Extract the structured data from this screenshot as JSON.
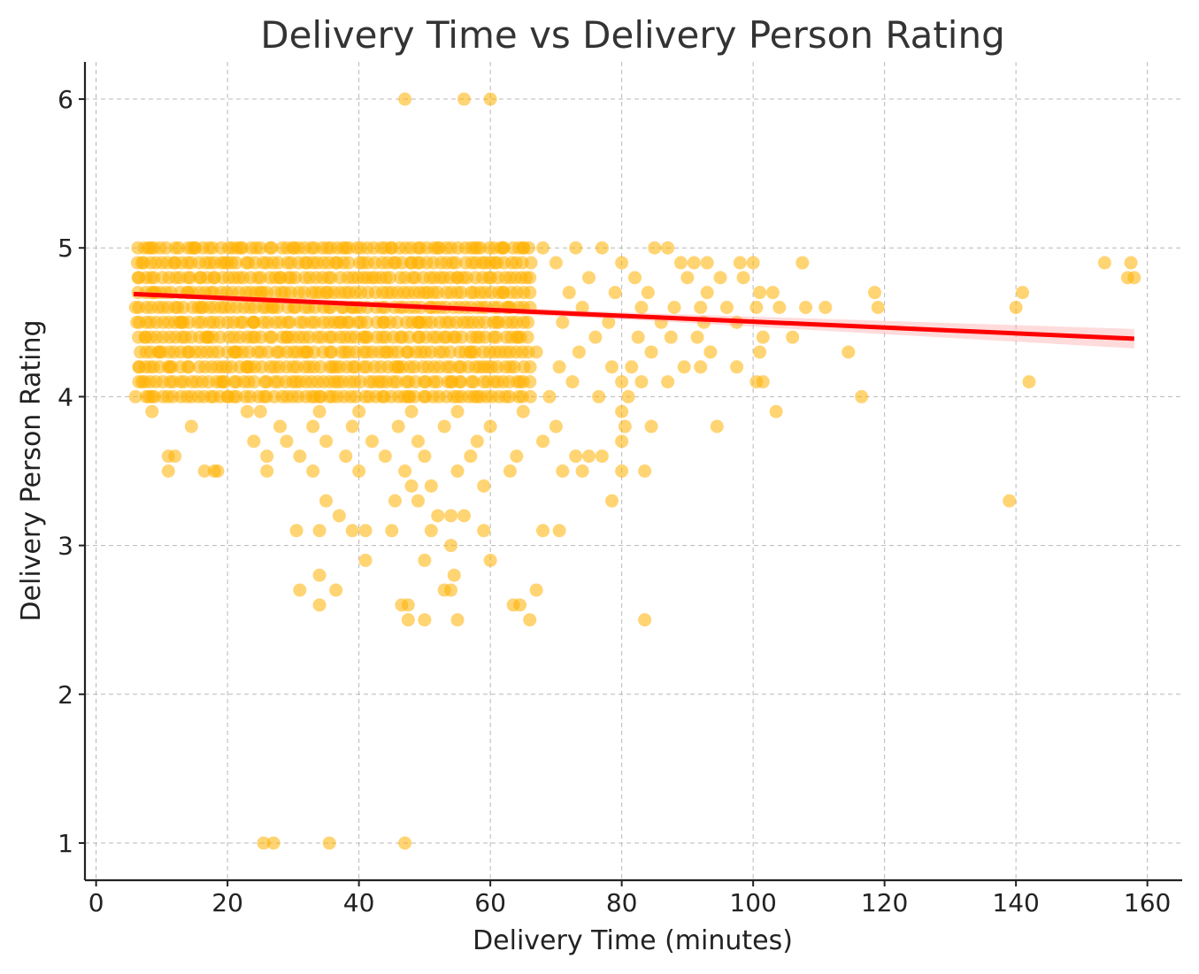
{
  "chart_data": {
    "type": "scatter",
    "title": "Delivery Time vs Delivery Person Rating",
    "xlabel": "Delivery Time (minutes)",
    "ylabel": "Delivery Person Rating",
    "xlim": [
      -1.7,
      165.3
    ],
    "ylim": [
      0.75,
      6.25
    ],
    "xticks": [
      0,
      20,
      40,
      60,
      80,
      100,
      120,
      140,
      160
    ],
    "yticks": [
      1,
      2,
      3,
      4,
      5,
      6
    ],
    "grid": true,
    "colors": {
      "points": "#FFB000",
      "trend": "#FF0000",
      "band": "#FF9999"
    },
    "series": [
      {
        "points": [
          [
            47,
            6.0
          ],
          [
            56,
            6.0
          ],
          [
            60,
            6.0
          ],
          [
            25.5,
            1.0
          ],
          [
            27,
            1.0
          ],
          [
            35.5,
            1.0
          ],
          [
            47,
            1.0
          ],
          [
            8,
            5.0
          ],
          [
            15,
            5.0
          ],
          [
            22,
            5.0
          ],
          [
            30,
            5.0
          ],
          [
            38,
            5.0
          ],
          [
            45,
            5.0
          ],
          [
            52,
            5.0
          ],
          [
            58,
            5.0
          ],
          [
            62,
            5.0
          ],
          [
            65,
            5.0
          ],
          [
            68,
            5.0
          ],
          [
            73,
            5.0
          ],
          [
            77,
            5.0
          ],
          [
            85,
            5.0
          ],
          [
            87,
            5.0
          ],
          [
            7,
            4.9
          ],
          [
            12,
            4.9
          ],
          [
            20,
            4.9
          ],
          [
            33,
            4.9
          ],
          [
            48,
            4.9
          ],
          [
            60,
            4.9
          ],
          [
            70,
            4.9
          ],
          [
            80,
            4.9
          ],
          [
            89,
            4.9
          ],
          [
            91,
            4.9
          ],
          [
            93,
            4.9
          ],
          [
            98,
            4.9
          ],
          [
            100,
            4.9
          ],
          [
            107.5,
            4.9
          ],
          [
            153.5,
            4.9
          ],
          [
            157.5,
            4.9
          ],
          [
            6.5,
            4.8
          ],
          [
            18,
            4.8
          ],
          [
            28,
            4.8
          ],
          [
            42,
            4.8
          ],
          [
            55,
            4.8
          ],
          [
            66,
            4.8
          ],
          [
            75,
            4.8
          ],
          [
            82,
            4.8
          ],
          [
            90,
            4.8
          ],
          [
            95,
            4.8
          ],
          [
            98.5,
            4.8
          ],
          [
            157,
            4.8
          ],
          [
            158,
            4.8
          ],
          [
            9,
            4.7
          ],
          [
            14,
            4.7
          ],
          [
            25,
            4.7
          ],
          [
            35,
            4.7
          ],
          [
            50,
            4.7
          ],
          [
            62,
            4.7
          ],
          [
            72,
            4.7
          ],
          [
            79,
            4.7
          ],
          [
            84,
            4.7
          ],
          [
            93,
            4.7
          ],
          [
            101,
            4.7
          ],
          [
            103,
            4.7
          ],
          [
            118.5,
            4.7
          ],
          [
            141,
            4.7
          ],
          [
            6,
            4.6
          ],
          [
            16,
            4.6
          ],
          [
            27,
            4.6
          ],
          [
            39,
            4.6
          ],
          [
            51,
            4.6
          ],
          [
            63,
            4.6
          ],
          [
            74,
            4.6
          ],
          [
            83,
            4.6
          ],
          [
            88,
            4.6
          ],
          [
            92,
            4.6
          ],
          [
            96,
            4.6
          ],
          [
            100.5,
            4.6
          ],
          [
            104,
            4.6
          ],
          [
            108,
            4.6
          ],
          [
            111,
            4.6
          ],
          [
            119,
            4.6
          ],
          [
            140,
            4.6
          ],
          [
            6.2,
            4.5
          ],
          [
            13,
            4.5
          ],
          [
            24,
            4.5
          ],
          [
            37,
            4.5
          ],
          [
            49,
            4.5
          ],
          [
            61,
            4.5
          ],
          [
            71,
            4.5
          ],
          [
            78,
            4.5
          ],
          [
            86,
            4.5
          ],
          [
            92.5,
            4.5
          ],
          [
            97.5,
            4.5
          ],
          [
            7.5,
            4.4
          ],
          [
            17,
            4.4
          ],
          [
            29,
            4.4
          ],
          [
            41,
            4.4
          ],
          [
            53,
            4.4
          ],
          [
            64,
            4.4
          ],
          [
            76,
            4.4
          ],
          [
            82.5,
            4.4
          ],
          [
            87.5,
            4.4
          ],
          [
            91.5,
            4.4
          ],
          [
            101.5,
            4.4
          ],
          [
            106,
            4.4
          ],
          [
            10,
            4.3
          ],
          [
            21,
            4.3
          ],
          [
            32,
            4.3
          ],
          [
            44,
            4.3
          ],
          [
            57,
            4.3
          ],
          [
            67,
            4.3
          ],
          [
            73.5,
            4.3
          ],
          [
            84.5,
            4.3
          ],
          [
            93.5,
            4.3
          ],
          [
            101,
            4.3
          ],
          [
            114.5,
            4.3
          ],
          [
            6.5,
            4.2
          ],
          [
            11,
            4.2
          ],
          [
            23,
            4.2
          ],
          [
            36,
            4.2
          ],
          [
            46,
            4.2
          ],
          [
            59,
            4.2
          ],
          [
            70.5,
            4.2
          ],
          [
            78.5,
            4.2
          ],
          [
            81.5,
            4.2
          ],
          [
            89.5,
            4.2
          ],
          [
            92,
            4.2
          ],
          [
            97.5,
            4.2
          ],
          [
            7,
            4.1
          ],
          [
            19,
            4.1
          ],
          [
            31,
            4.1
          ],
          [
            43,
            4.1
          ],
          [
            54,
            4.1
          ],
          [
            65,
            4.1
          ],
          [
            72.5,
            4.1
          ],
          [
            80,
            4.1
          ],
          [
            83,
            4.1
          ],
          [
            87,
            4.1
          ],
          [
            100.5,
            4.1
          ],
          [
            101.5,
            4.1
          ],
          [
            142,
            4.1
          ],
          [
            8.5,
            4.0
          ],
          [
            20,
            4.0
          ],
          [
            34,
            4.0
          ],
          [
            47.5,
            4.0
          ],
          [
            58,
            4.0
          ],
          [
            69,
            4.0
          ],
          [
            76.5,
            4.0
          ],
          [
            81,
            4.0
          ],
          [
            116.5,
            4.0
          ],
          [
            8.5,
            3.9
          ],
          [
            23,
            3.9
          ],
          [
            25,
            3.9
          ],
          [
            34,
            3.9
          ],
          [
            40,
            3.9
          ],
          [
            48,
            3.9
          ],
          [
            55,
            3.9
          ],
          [
            65,
            3.9
          ],
          [
            80,
            3.9
          ],
          [
            103.5,
            3.9
          ],
          [
            14.5,
            3.8
          ],
          [
            28,
            3.8
          ],
          [
            33,
            3.8
          ],
          [
            39,
            3.8
          ],
          [
            46,
            3.8
          ],
          [
            53,
            3.8
          ],
          [
            60,
            3.8
          ],
          [
            70,
            3.8
          ],
          [
            80.5,
            3.8
          ],
          [
            84.5,
            3.8
          ],
          [
            94.5,
            3.8
          ],
          [
            24,
            3.7
          ],
          [
            29,
            3.7
          ],
          [
            35,
            3.7
          ],
          [
            42,
            3.7
          ],
          [
            49,
            3.7
          ],
          [
            58,
            3.7
          ],
          [
            68,
            3.7
          ],
          [
            80,
            3.7
          ],
          [
            11,
            3.6
          ],
          [
            12,
            3.6
          ],
          [
            26,
            3.6
          ],
          [
            31,
            3.6
          ],
          [
            38,
            3.6
          ],
          [
            44,
            3.6
          ],
          [
            50,
            3.6
          ],
          [
            57,
            3.6
          ],
          [
            64,
            3.6
          ],
          [
            73,
            3.6
          ],
          [
            75,
            3.6
          ],
          [
            77,
            3.6
          ],
          [
            11,
            3.5
          ],
          [
            16.5,
            3.5
          ],
          [
            18,
            3.5
          ],
          [
            18.5,
            3.5
          ],
          [
            26,
            3.5
          ],
          [
            33,
            3.5
          ],
          [
            40,
            3.5
          ],
          [
            47,
            3.5
          ],
          [
            55,
            3.5
          ],
          [
            63,
            3.5
          ],
          [
            71,
            3.5
          ],
          [
            74,
            3.5
          ],
          [
            80,
            3.5
          ],
          [
            83.5,
            3.5
          ],
          [
            48,
            3.4
          ],
          [
            51,
            3.4
          ],
          [
            59,
            3.4
          ],
          [
            35,
            3.3
          ],
          [
            45.5,
            3.3
          ],
          [
            49,
            3.3
          ],
          [
            78.5,
            3.3
          ],
          [
            139,
            3.3
          ],
          [
            37,
            3.2
          ],
          [
            52,
            3.2
          ],
          [
            54,
            3.2
          ],
          [
            56,
            3.2
          ],
          [
            30.5,
            3.1
          ],
          [
            34,
            3.1
          ],
          [
            39,
            3.1
          ],
          [
            41,
            3.1
          ],
          [
            45,
            3.1
          ],
          [
            51,
            3.1
          ],
          [
            59,
            3.1
          ],
          [
            68,
            3.1
          ],
          [
            70.5,
            3.1
          ],
          [
            54,
            3.0
          ],
          [
            41,
            2.9
          ],
          [
            50,
            2.9
          ],
          [
            60,
            2.9
          ],
          [
            34,
            2.8
          ],
          [
            54.5,
            2.8
          ],
          [
            31,
            2.7
          ],
          [
            36.5,
            2.7
          ],
          [
            53,
            2.7
          ],
          [
            54,
            2.7
          ],
          [
            67,
            2.7
          ],
          [
            34,
            2.6
          ],
          [
            46.5,
            2.6
          ],
          [
            47.5,
            2.6
          ],
          [
            63.5,
            2.6
          ],
          [
            64.5,
            2.6
          ],
          [
            47.5,
            2.5
          ],
          [
            50,
            2.5
          ],
          [
            55,
            2.5
          ],
          [
            66,
            2.5
          ],
          [
            83.5,
            2.5
          ]
        ]
      }
    ],
    "trend": {
      "x": [
        5.7,
        158
      ],
      "y": [
        4.69,
        4.39
      ]
    }
  }
}
